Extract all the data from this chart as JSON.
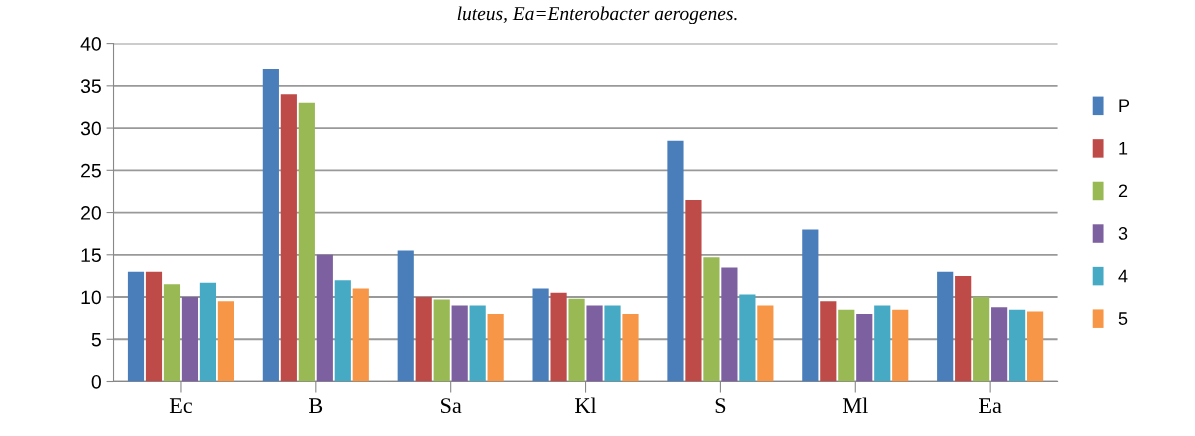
{
  "chart_data": {
    "type": "bar",
    "categories": [
      "Ec",
      "B",
      "Sa",
      "Kl",
      "S",
      "Ml",
      "Ea"
    ],
    "series": [
      {
        "name": "P",
        "color": "#4a7ebb",
        "values": [
          13,
          37,
          15.5,
          11,
          28.5,
          18,
          13
        ]
      },
      {
        "name": "1",
        "color": "#be4b48",
        "values": [
          13,
          34,
          10,
          10.5,
          21.5,
          9.5,
          12.5
        ]
      },
      {
        "name": "2",
        "color": "#98b954",
        "values": [
          11.5,
          33,
          9.7,
          9.8,
          14.7,
          8.5,
          10
        ]
      },
      {
        "name": "3",
        "color": "#7d60a0",
        "values": [
          10,
          15,
          9,
          9,
          13.5,
          8,
          8.8
        ]
      },
      {
        "name": "4",
        "color": "#46aac5",
        "values": [
          11.7,
          12,
          9,
          9,
          10.3,
          9,
          8.5
        ]
      },
      {
        "name": "5",
        "color": "#f79646",
        "values": [
          9.5,
          11,
          8,
          8,
          9,
          8.5,
          8.3
        ]
      }
    ],
    "ylim": [
      0,
      40
    ],
    "yticks": [
      0,
      5,
      10,
      15,
      20,
      25,
      30,
      35,
      40
    ],
    "grid": "y",
    "legend": "right",
    "annotations": [
      "luteus, Ea=Enterobacter aerogenes."
    ]
  }
}
